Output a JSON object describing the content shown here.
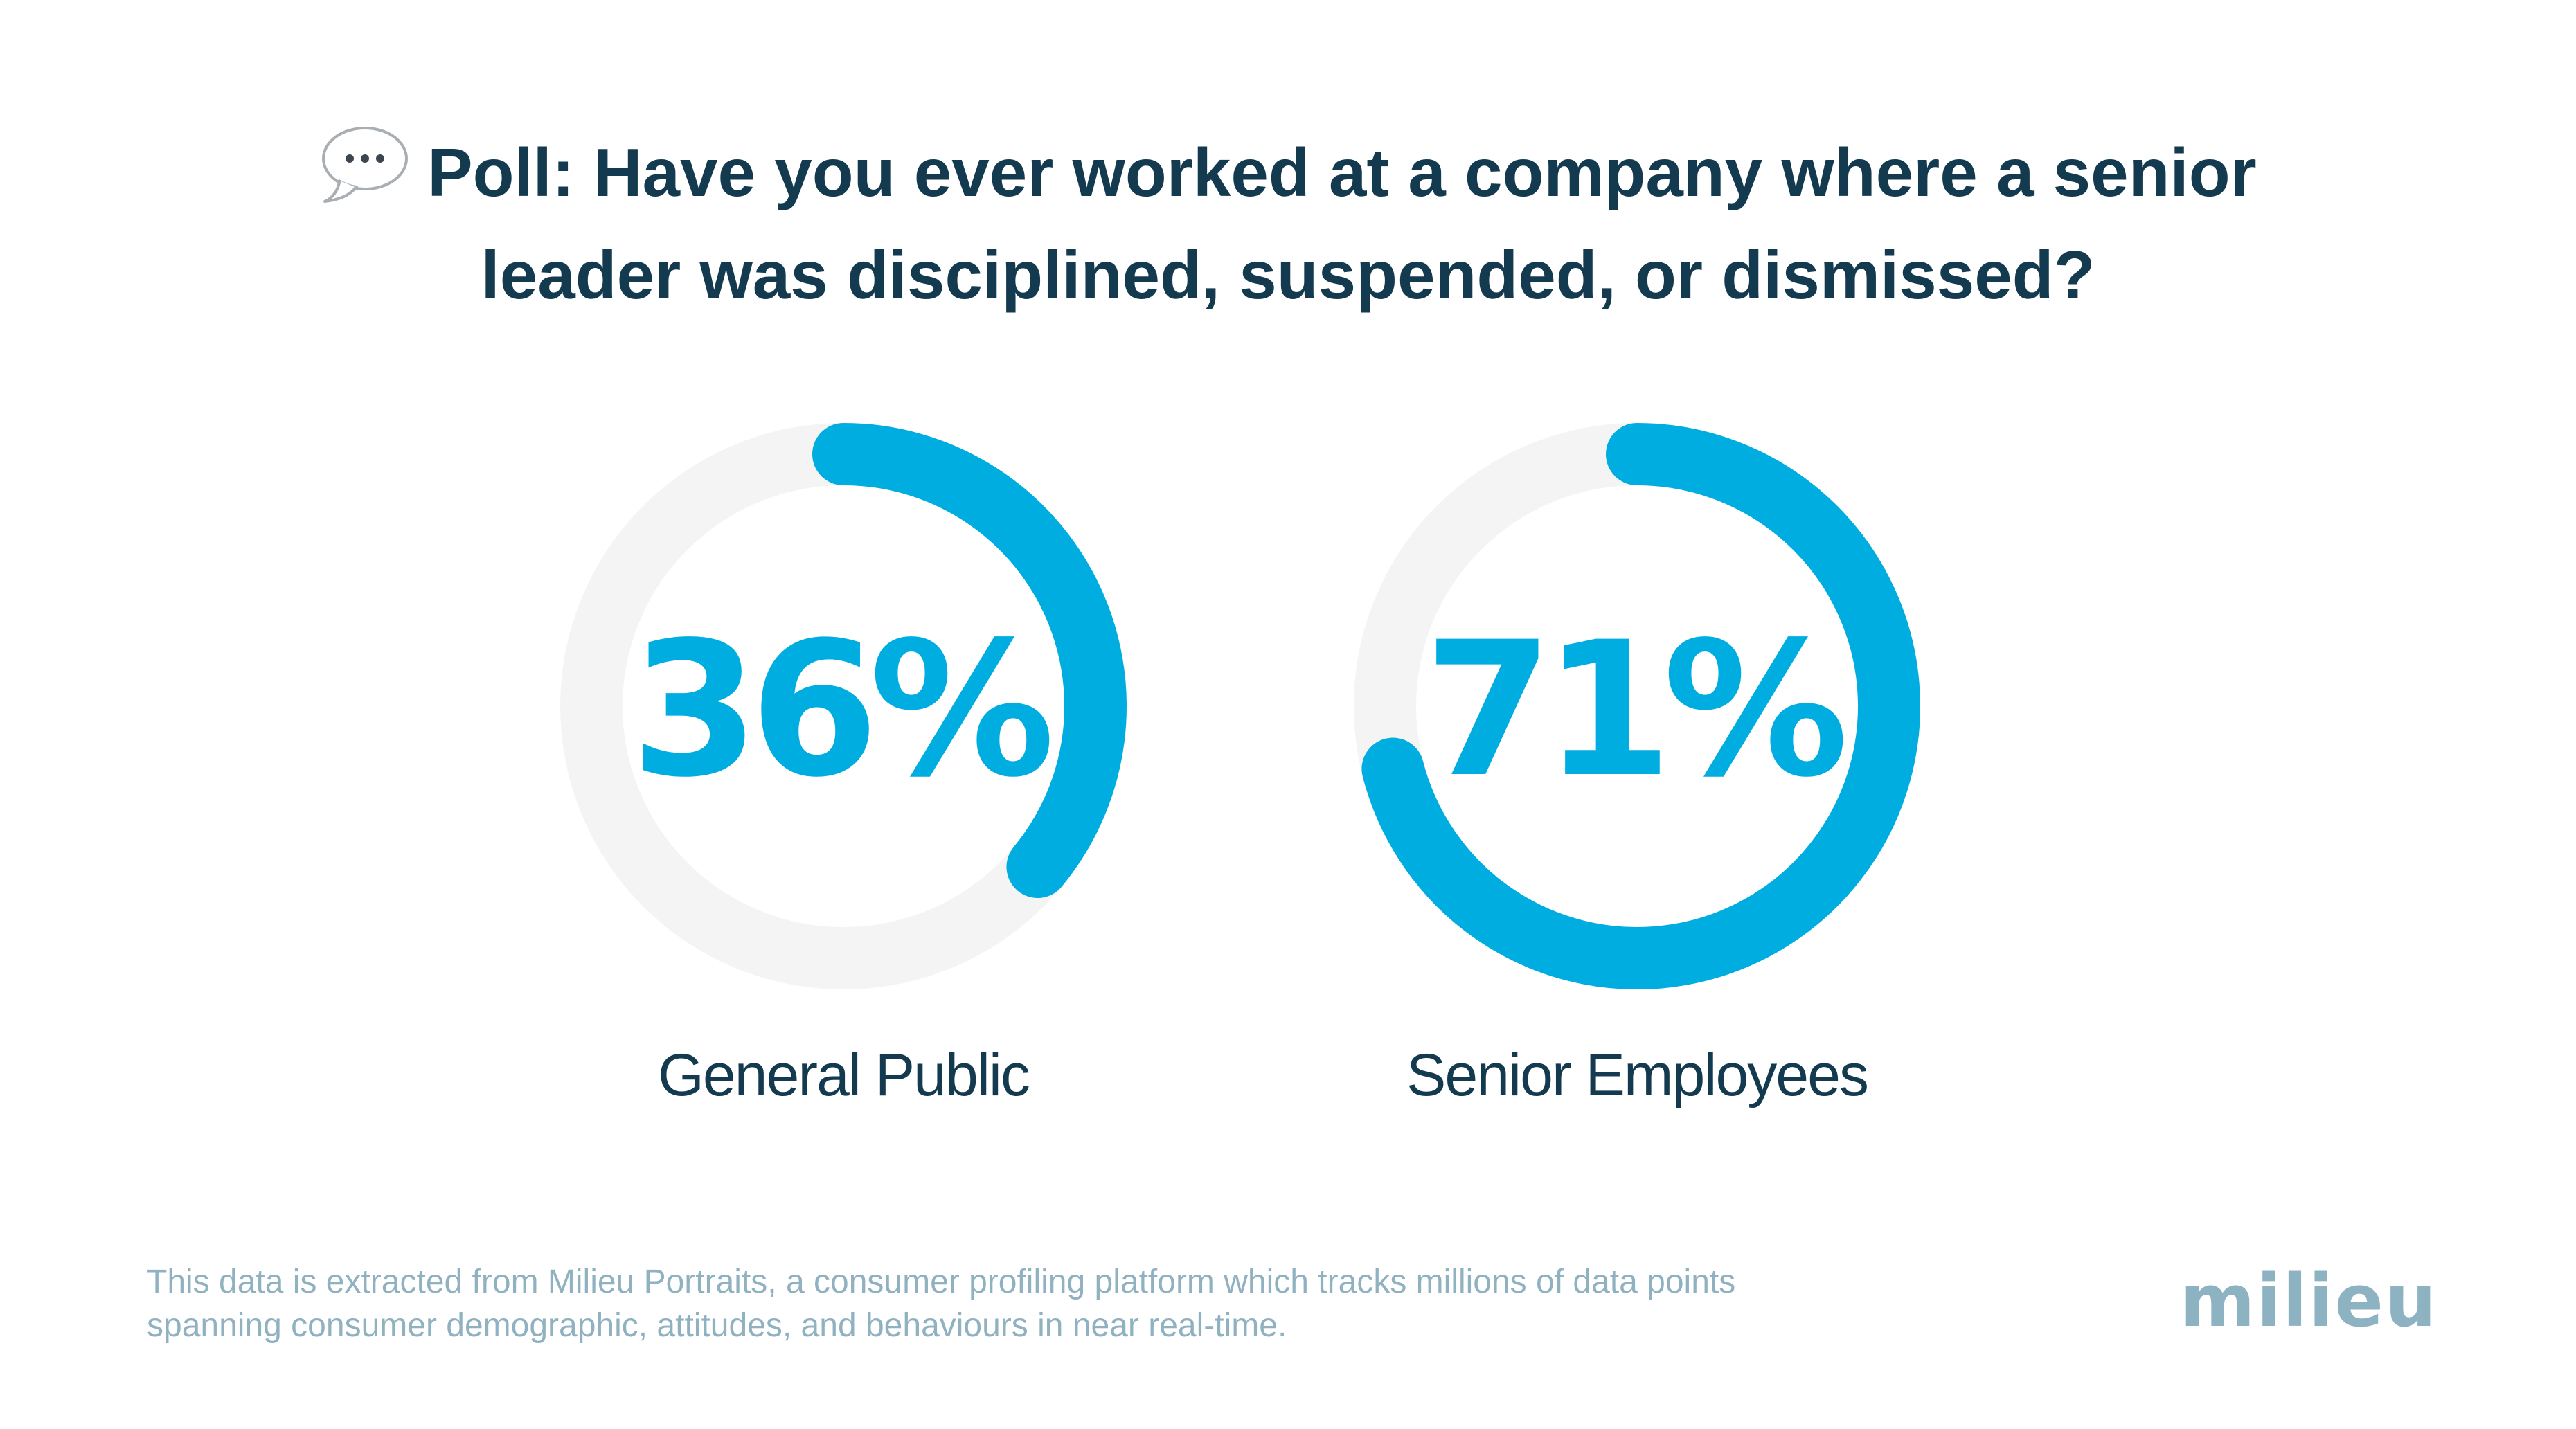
{
  "title": {
    "line1": "Poll: Have you ever worked at a company where a senior",
    "line2": "leader was disciplined, suspended, or dismissed?",
    "icon": "speech-bubble-icon"
  },
  "chart_data": {
    "type": "pie",
    "style": "donut",
    "title": "Poll: Have you ever worked at a company where a senior leader was disciplined, suspended, or dismissed?",
    "series": [
      {
        "name": "General Public",
        "value": 36,
        "label": "36%"
      },
      {
        "name": "Senior Employees",
        "value": 71,
        "label": "71%"
      }
    ],
    "colors": {
      "filled": "#00ade1",
      "track": "#f4f4f4"
    }
  },
  "footnote": {
    "line1": "This data is extracted from Milieu Portraits, a consumer profiling platform which tracks millions of data points",
    "line2": "spanning consumer demographic, attitudes, and behaviours in near real-time."
  },
  "logo": {
    "text": "milieu"
  }
}
